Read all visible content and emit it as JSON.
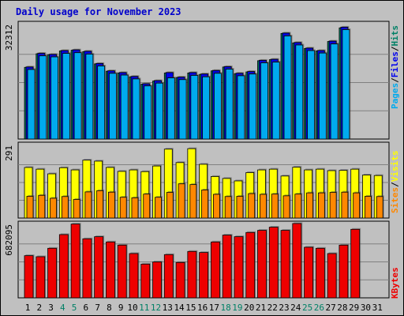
{
  "title": "Daily usage for November 2023",
  "colors": {
    "background": "#c0c0c0",
    "title": "#0000cc",
    "pages": "#0000ee",
    "files": "#00aaee",
    "hits": "#008066",
    "visits": "#ffff00",
    "sites": "#ff8800",
    "kbytes": "#ee0000",
    "weekend_label": "#008066",
    "weekday_label": "#000000"
  },
  "chart_data": [
    {
      "type": "bar",
      "title": "Daily usage for November 2023",
      "axis_max_label": "32312",
      "ymax": 32312,
      "legend": [
        "Pages",
        "Files",
        "Hits"
      ],
      "categories": [
        "1",
        "2",
        "3",
        "4",
        "5",
        "6",
        "7",
        "8",
        "9",
        "10",
        "11",
        "12",
        "13",
        "14",
        "15",
        "16",
        "17",
        "18",
        "19",
        "20",
        "21",
        "22",
        "23",
        "24",
        "25",
        "26",
        "27",
        "28",
        "29",
        "30",
        "31"
      ],
      "series": [
        {
          "name": "Pages",
          "values": [
            20600,
            24500,
            24200,
            25300,
            25500,
            25100,
            21600,
            19500,
            19000,
            17900,
            15800,
            16700,
            19000,
            17700,
            19000,
            18600,
            19600,
            20700,
            18800,
            19300,
            22500,
            22800,
            30300,
            27600,
            26000,
            25300,
            28000,
            32000,
            0,
            0,
            0
          ]
        },
        {
          "name": "Files",
          "values": [
            19900,
            23800,
            23500,
            24500,
            24700,
            24300,
            20900,
            18800,
            18300,
            17200,
            15200,
            16000,
            17500,
            17000,
            18200,
            17800,
            18800,
            20000,
            18100,
            18600,
            21800,
            22000,
            29500,
            26900,
            25300,
            24600,
            27200,
            31300,
            0,
            0,
            0
          ]
        },
        {
          "name": "Hits",
          "values": [
            20500,
            24400,
            24100,
            25200,
            25400,
            25000,
            21500,
            19400,
            18900,
            17800,
            15700,
            16600,
            18900,
            17600,
            18900,
            18500,
            19500,
            20600,
            18700,
            19200,
            22400,
            22700,
            30200,
            27500,
            25900,
            25200,
            27900,
            31800,
            0,
            0,
            0
          ]
        }
      ]
    },
    {
      "type": "bar",
      "axis_max_label": "291",
      "ymax": 291,
      "legend": [
        "Sites",
        "Visits"
      ],
      "categories": [
        "1",
        "2",
        "3",
        "4",
        "5",
        "6",
        "7",
        "8",
        "9",
        "10",
        "11",
        "12",
        "13",
        "14",
        "15",
        "16",
        "17",
        "18",
        "19",
        "20",
        "21",
        "22",
        "23",
        "24",
        "25",
        "26",
        "27",
        "28",
        "29",
        "30",
        "31"
      ],
      "series": [
        {
          "name": "Visits",
          "values": [
            207,
            200,
            181,
            206,
            197,
            237,
            233,
            207,
            191,
            197,
            190,
            213,
            282,
            227,
            284,
            220,
            170,
            162,
            152,
            186,
            197,
            200,
            172,
            208,
            197,
            200,
            194,
            195,
            200,
            176,
            174
          ]
        },
        {
          "name": "Sites",
          "values": [
            89,
            93,
            81,
            88,
            76,
            107,
            112,
            106,
            85,
            83,
            98,
            85,
            105,
            140,
            137,
            115,
            97,
            88,
            89,
            100,
            97,
            98,
            91,
            98,
            103,
            103,
            105,
            106,
            103,
            89,
            88
          ]
        }
      ]
    },
    {
      "type": "bar",
      "axis_max_label": "682095",
      "ymax": 682095,
      "legend": [
        "KBytes"
      ],
      "categories": [
        "1",
        "2",
        "3",
        "4",
        "5",
        "6",
        "7",
        "8",
        "9",
        "10",
        "11",
        "12",
        "13",
        "14",
        "15",
        "16",
        "17",
        "18",
        "19",
        "20",
        "21",
        "22",
        "23",
        "24",
        "25",
        "26",
        "27",
        "28",
        "29",
        "30",
        "31"
      ],
      "series": [
        {
          "name": "KBytes",
          "values": [
            400000,
            390000,
            470000,
            600000,
            700000,
            560000,
            580000,
            530000,
            500000,
            420000,
            320000,
            340000,
            410000,
            335000,
            440000,
            430000,
            530000,
            595000,
            580000,
            620000,
            640000,
            670000,
            640000,
            705000,
            480000,
            470000,
            420000,
            500000,
            650000,
            0,
            0
          ]
        }
      ]
    }
  ],
  "weekend_days": [
    4,
    5,
    11,
    12,
    18,
    19,
    25,
    26
  ]
}
